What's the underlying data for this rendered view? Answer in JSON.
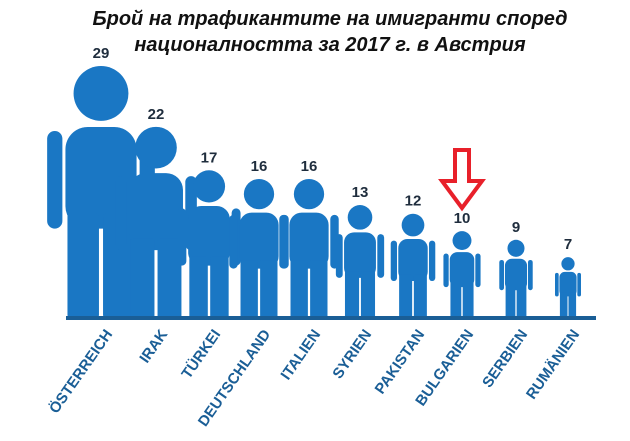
{
  "title": {
    "line1": "Брой на трафикантите на имигранти според",
    "line2": "националността за 2017 г. в Австрия"
  },
  "chart_data": {
    "type": "bar",
    "categories": [
      "ÖSTERREICH",
      "IRAK",
      "TÜRKEI",
      "DEUTSCHLAND",
      "ITALIEN",
      "SYRIEN",
      "PAKISTAN",
      "BULGARIEN",
      "SERBIEN",
      "RUMÄNIEN"
    ],
    "values": [
      29,
      22,
      17,
      16,
      16,
      13,
      12,
      10,
      9,
      7
    ],
    "ylim": [
      0,
      29
    ],
    "highlight_category": "BULGARIEN",
    "grid": false,
    "legend": "none"
  },
  "colors": {
    "figure": "#1a77c4",
    "baseline": "#1a5e96",
    "label": "#1a5e96",
    "value": "#1f2d3d",
    "arrow": "#e8202a"
  },
  "icons": {
    "figure": "person-silhouette-icon",
    "highlight": "down-arrow-icon"
  }
}
